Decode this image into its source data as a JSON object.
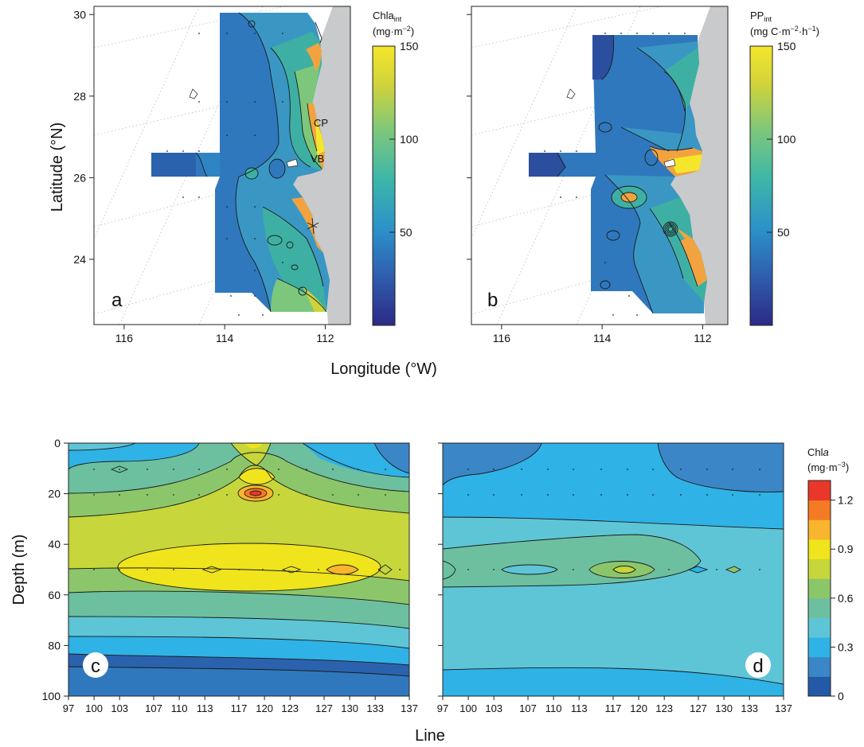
{
  "colors": {
    "land": "#c9cacb",
    "axis": "#222222",
    "seq_scale": [
      "#2c2a84",
      "#2f5fb0",
      "#2c90c9",
      "#3bb6a9",
      "#7ec77a",
      "#cfd33b",
      "#f5e62b",
      "#f5a93c"
    ],
    "chl_scale": [
      "#2359a8",
      "#3b86c6",
      "#2fb2e6",
      "#5ec5d7",
      "#6cc0a0",
      "#8cc66a",
      "#c7d63a",
      "#f0e41c",
      "#f9b52d",
      "#f47b24",
      "#e9382a"
    ]
  },
  "axes": {
    "longitude_label": "Longitude (°W)",
    "latitude_label": "Latitude (°N)",
    "depth_label": "Depth (m)",
    "line_label": "Line"
  },
  "chart_data": [
    {
      "type": "heatmap",
      "panel": "a",
      "panel_label": "a",
      "x_ticks": [
        "116",
        "114",
        "112"
      ],
      "xlim": [
        116.6,
        111.5
      ],
      "y_ticks": [
        "30",
        "28",
        "26",
        "24"
      ],
      "ylim": [
        22.4,
        30.2
      ],
      "colorbar": {
        "title": "Chla",
        "subscript": "int",
        "unit": "(mg·m",
        "unit_exp": "−2",
        "unit_tail": ")",
        "ticks": [
          "150",
          "100",
          "50"
        ],
        "range": [
          0,
          150
        ]
      },
      "annotations": [
        "CP",
        "VB"
      ]
    },
    {
      "type": "heatmap",
      "panel": "b",
      "panel_label": "b",
      "x_ticks": [
        "116",
        "114",
        "112"
      ],
      "xlim": [
        116.6,
        111.5
      ],
      "y_ticks": [],
      "ylim": [
        22.4,
        30.2
      ],
      "colorbar": {
        "title": "PP",
        "subscript": "int",
        "unit": "(mg C·m",
        "unit_exp": "−2",
        "unit_mid": "·h",
        "unit_exp2": "−1",
        "unit_tail": ")",
        "ticks": [
          "150",
          "100",
          "50"
        ],
        "range": [
          0,
          150
        ]
      }
    },
    {
      "type": "heatmap",
      "panel": "c",
      "panel_label": "c",
      "x_ticks": [
        "97",
        "100",
        "103",
        "107",
        "110",
        "113",
        "117",
        "120",
        "123",
        "127",
        "130",
        "133",
        "137"
      ],
      "xlim": [
        97,
        137
      ],
      "y_ticks": [
        "0",
        "20",
        "40",
        "60",
        "80",
        "100"
      ],
      "ylim": [
        100,
        0
      ]
    },
    {
      "type": "heatmap",
      "panel": "d",
      "panel_label": "d",
      "x_ticks": [
        "97",
        "100",
        "103",
        "107",
        "110",
        "113",
        "117",
        "120",
        "123",
        "127",
        "130",
        "133",
        "137"
      ],
      "xlim": [
        97,
        137
      ],
      "y_ticks": [],
      "ylim": [
        100,
        0
      ],
      "colorbar": {
        "title": "Chl",
        "title_italic": "a",
        "unit": "(mg·m",
        "unit_exp": "−3",
        "unit_tail": ")",
        "ticks": [
          "1.2",
          "0.9",
          "0.6",
          "0.3",
          "0"
        ],
        "range": [
          0,
          1.32
        ]
      }
    }
  ]
}
